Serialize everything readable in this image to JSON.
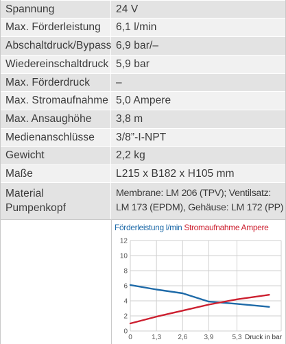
{
  "rows": [
    {
      "label": "Spannung",
      "value": "24 V"
    },
    {
      "label": "Max. Förderleistung",
      "value": "6,1 l/min"
    },
    {
      "label": "Abschaltdruck/Bypass",
      "value": "6,9 bar/–"
    },
    {
      "label": "Wiedereinschaltdruck",
      "value": "5,9 bar"
    },
    {
      "label": "Max. Förderdruck",
      "value": "–"
    },
    {
      "label": "Max. Stromaufnahme",
      "value": "5,0 Ampere"
    },
    {
      "label": "Max. Ansaughöhe",
      "value": "3,8 m"
    },
    {
      "label": "Medienanschlüsse",
      "value": "3/8”-I-NPT"
    },
    {
      "label": "Gewicht",
      "value": "2,2 kg"
    },
    {
      "label": "Maße",
      "value": "L215 x B182 x H105 mm"
    },
    {
      "label": "Material\nPumpenkopf",
      "value": "Membrane: LM 206 (TPV); Ventilsatz:\nLM 173 (EPDM), Gehäuse: LM 172 (PP)"
    }
  ],
  "chart_data": {
    "type": "line",
    "xlabel": "Druck in bar",
    "ylabel": "",
    "x_ticks": [
      "0",
      "1,3",
      "2,6",
      "3,9",
      "5,3"
    ],
    "y_ticks": [
      "0",
      "2",
      "4",
      "6",
      "8",
      "10",
      "12"
    ],
    "xlim": [
      0,
      7.5
    ],
    "ylim": [
      0,
      12
    ],
    "grid": true,
    "series": [
      {
        "name": "Förderleistung l/min",
        "color": "#1e6aa8",
        "x": [
          0,
          1.3,
          2.6,
          3.9,
          5.3,
          6.9
        ],
        "y": [
          6.1,
          5.5,
          5.0,
          3.9,
          3.6,
          3.2
        ]
      },
      {
        "name": "Stromaufnahme Ampere",
        "color": "#cc1f2f",
        "x": [
          0,
          1.3,
          2.6,
          3.9,
          5.3,
          6.9
        ],
        "y": [
          1.0,
          1.9,
          2.7,
          3.5,
          4.2,
          4.8
        ]
      }
    ]
  }
}
